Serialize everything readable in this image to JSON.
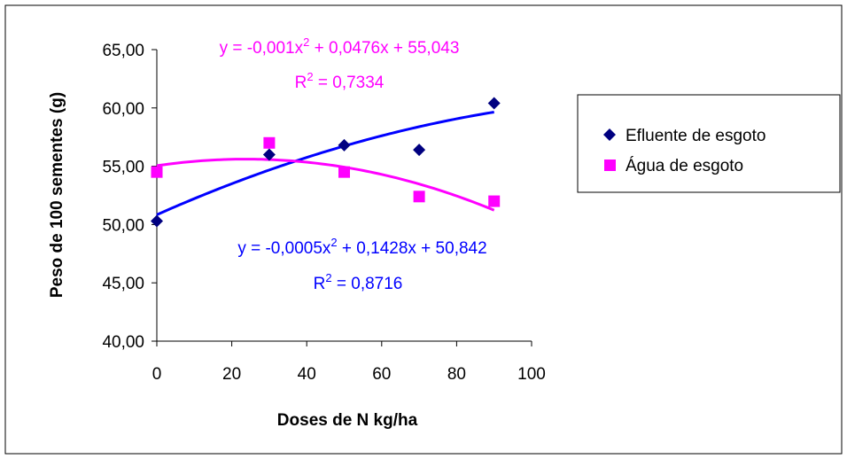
{
  "chart_data": {
    "type": "scatter",
    "xlabel": "Doses de N kg/ha",
    "ylabel": "Peso de 100 sementes (g)",
    "xlim": [
      0,
      100
    ],
    "ylim": [
      40,
      65
    ],
    "x_ticks": [
      "0",
      "20",
      "40",
      "60",
      "80",
      "100"
    ],
    "y_ticks": [
      "40,00",
      "45,00",
      "50,00",
      "55,00",
      "60,00",
      "65,00"
    ],
    "grid": false,
    "legend_position": "right",
    "series": [
      {
        "name": "Efluente de esgoto",
        "marker": "diamond",
        "color": "#000080",
        "trend_color": "#0000ff",
        "x": [
          0,
          30,
          50,
          70,
          90
        ],
        "y": [
          50.3,
          56.0,
          56.8,
          56.4,
          60.4
        ],
        "trendline": {
          "a": -0.0005,
          "b": 0.1428,
          "c": 50.842
        },
        "equation": "y = -0,0005x",
        "equation_rest": " + 0,1428x + 50,842",
        "r2_label": "R",
        "r2_value": " = 0,8716"
      },
      {
        "name": "Água de esgoto",
        "marker": "square",
        "color": "#ff00ff",
        "trend_color": "#ff00ff",
        "x": [
          0,
          30,
          50,
          70,
          90
        ],
        "y": [
          54.5,
          57.0,
          54.5,
          52.4,
          52.0
        ],
        "trendline": {
          "a": -0.001,
          "b": 0.0476,
          "c": 55.043
        },
        "equation": "y = -0,001x",
        "equation_rest": " + 0,0476x + 55,043",
        "r2_label": "R",
        "r2_value": " = 0,7334"
      }
    ],
    "superscript": "2"
  }
}
